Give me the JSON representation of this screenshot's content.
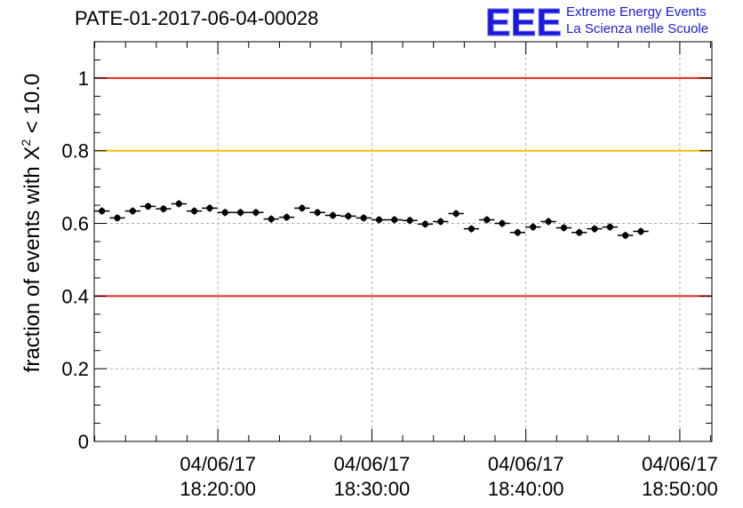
{
  "header": {
    "title": "PATE-01-2017-06-04-00028"
  },
  "logo": {
    "mark": "EEE",
    "line1": "Extreme Energy Events",
    "line2": "La Scienza nelle Scuole",
    "color": "#1a1ad6"
  },
  "chart_data": {
    "type": "scatter",
    "title": "PATE-01-2017-06-04-00028",
    "xlabel": "",
    "ylabel": {
      "prefix": "fraction of events with ",
      "symbol": "X",
      "superscript": "2",
      "suffix": " < 10.0"
    },
    "ylim": [
      0,
      1.1
    ],
    "yticks": [
      0,
      0.2,
      0.4,
      0.6,
      0.8,
      1
    ],
    "ytick_labels": [
      "0",
      "0.2",
      "0.4",
      "0.6",
      "0.8",
      "1"
    ],
    "xlim": [
      "2017-06-04 18:11:58",
      "2017-06-04 18:52:05"
    ],
    "xticks": [
      {
        "time": "2017-06-04 18:20:00",
        "date_label": "04/06/17",
        "time_label": "18:20:00"
      },
      {
        "time": "2017-06-04 18:30:00",
        "date_label": "04/06/17",
        "time_label": "18:30:00"
      },
      {
        "time": "2017-06-04 18:40:00",
        "date_label": "04/06/17",
        "time_label": "18:40:00"
      },
      {
        "time": "2017-06-04 18:50:00",
        "date_label": "04/06/17",
        "time_label": "18:50:00"
      }
    ],
    "grid": true,
    "reference_lines": [
      {
        "y": 1.0,
        "color": "#e8271c"
      },
      {
        "y": 0.8,
        "color": "#f5c000"
      },
      {
        "y": 0.4,
        "color": "#e8271c"
      }
    ],
    "points": [
      {
        "x": "2017-06-04 18:12:28",
        "y": 0.634
      },
      {
        "x": "2017-06-04 18:13:28",
        "y": 0.615
      },
      {
        "x": "2017-06-04 18:14:28",
        "y": 0.634
      },
      {
        "x": "2017-06-04 18:15:28",
        "y": 0.647
      },
      {
        "x": "2017-06-04 18:16:28",
        "y": 0.64
      },
      {
        "x": "2017-06-04 18:17:28",
        "y": 0.654
      },
      {
        "x": "2017-06-04 18:18:28",
        "y": 0.634
      },
      {
        "x": "2017-06-04 18:19:28",
        "y": 0.642
      },
      {
        "x": "2017-06-04 18:20:28",
        "y": 0.63
      },
      {
        "x": "2017-06-04 18:21:28",
        "y": 0.63
      },
      {
        "x": "2017-06-04 18:22:28",
        "y": 0.63
      },
      {
        "x": "2017-06-04 18:23:28",
        "y": 0.612
      },
      {
        "x": "2017-06-04 18:24:28",
        "y": 0.617
      },
      {
        "x": "2017-06-04 18:25:28",
        "y": 0.642
      },
      {
        "x": "2017-06-04 18:26:28",
        "y": 0.63
      },
      {
        "x": "2017-06-04 18:27:28",
        "y": 0.622
      },
      {
        "x": "2017-06-04 18:28:28",
        "y": 0.62
      },
      {
        "x": "2017-06-04 18:29:28",
        "y": 0.615
      },
      {
        "x": "2017-06-04 18:30:28",
        "y": 0.61
      },
      {
        "x": "2017-06-04 18:31:28",
        "y": 0.61
      },
      {
        "x": "2017-06-04 18:32:28",
        "y": 0.608
      },
      {
        "x": "2017-06-04 18:33:28",
        "y": 0.598
      },
      {
        "x": "2017-06-04 18:34:28",
        "y": 0.605
      },
      {
        "x": "2017-06-04 18:35:28",
        "y": 0.627
      },
      {
        "x": "2017-06-04 18:36:28",
        "y": 0.585
      },
      {
        "x": "2017-06-04 18:37:28",
        "y": 0.61
      },
      {
        "x": "2017-06-04 18:38:28",
        "y": 0.6
      },
      {
        "x": "2017-06-04 18:39:28",
        "y": 0.575
      },
      {
        "x": "2017-06-04 18:40:28",
        "y": 0.59
      },
      {
        "x": "2017-06-04 18:41:28",
        "y": 0.605
      },
      {
        "x": "2017-06-04 18:42:28",
        "y": 0.588
      },
      {
        "x": "2017-06-04 18:43:28",
        "y": 0.575
      },
      {
        "x": "2017-06-04 18:44:28",
        "y": 0.585
      },
      {
        "x": "2017-06-04 18:45:28",
        "y": 0.59
      },
      {
        "x": "2017-06-04 18:46:28",
        "y": 0.567
      },
      {
        "x": "2017-06-04 18:47:28",
        "y": 0.578
      }
    ],
    "error_bars": {
      "x_half_width": "30 s",
      "y_half_width": 0.01
    },
    "marker_color": "#000000"
  }
}
